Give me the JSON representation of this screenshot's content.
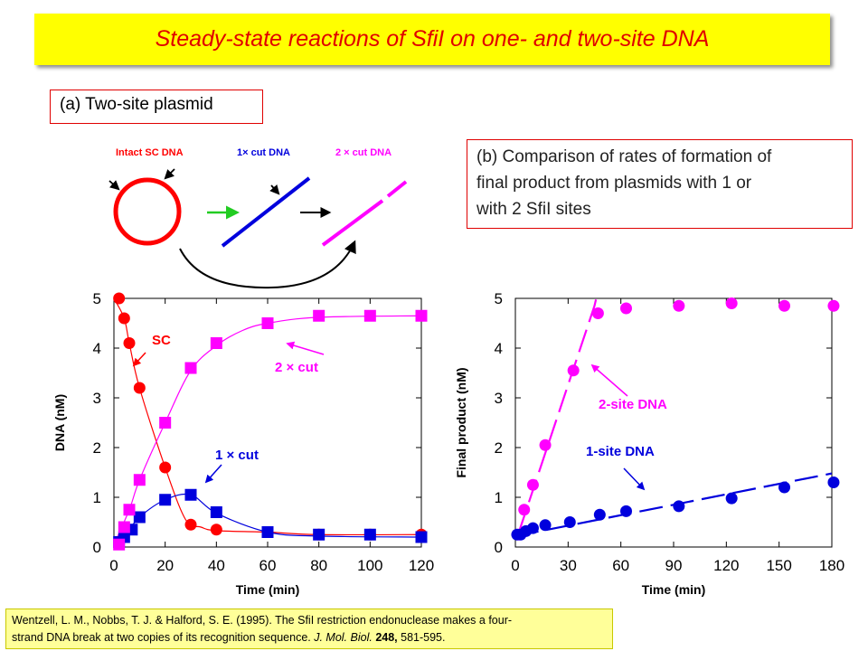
{
  "title": "Steady-state reactions of SfiI  on one- and two-site DNA",
  "panel_a_label": "(a) Two-site plasmid",
  "panel_b_lines": [
    "(b) Comparison of rates of formation of",
    "final product from plasmids with 1 or",
    "with 2 SfiI sites"
  ],
  "schematic": {
    "intact_label": "Intact SC DNA",
    "one_cut_label": "1× cut DNA",
    "two_cut_label": "2 × cut DNA"
  },
  "colors": {
    "red": "#ff0000",
    "blue": "#0000dd",
    "magenta": "#ff00ff",
    "green": "#22cc22",
    "title_text": "#e00000"
  },
  "reference": {
    "line1": "Wentzell, L. M., Nobbs, T. J. & Halford, S. E. (1995). The SfiI restriction endonuclease makes a four-",
    "line2_pre": "strand DNA break at two copies of its recognition sequence. ",
    "journal": "J. Mol. Biol.",
    "volume": "248,",
    "pages": " 581-595."
  },
  "chart_data": [
    {
      "type": "scatter",
      "xlabel": "Time (min)",
      "ylabel": "DNA (nM)",
      "xlim": [
        0,
        120
      ],
      "ylim": [
        0,
        5
      ],
      "xticks": [
        0,
        20,
        40,
        60,
        80,
        100,
        120
      ],
      "yticks": [
        0,
        1,
        2,
        3,
        4,
        5
      ],
      "series": [
        {
          "name": "SC",
          "label": "SC",
          "color": "#ff0000",
          "marker": "circle",
          "x": [
            2,
            4,
            6,
            10,
            20,
            30,
            40,
            60,
            80,
            100,
            120
          ],
          "y": [
            5.0,
            4.6,
            4.1,
            3.2,
            1.6,
            0.45,
            0.35,
            0.3,
            0.25,
            0.25,
            0.25
          ]
        },
        {
          "name": "1 × cut",
          "label": "1 × cut",
          "color": "#0000dd",
          "marker": "square",
          "x": [
            2,
            4,
            7,
            10,
            20,
            30,
            40,
            60,
            80,
            100,
            120
          ],
          "y": [
            0.1,
            0.2,
            0.35,
            0.6,
            0.95,
            1.05,
            0.7,
            0.3,
            0.25,
            0.25,
            0.2
          ]
        },
        {
          "name": "2 × cut",
          "label": "2 × cut",
          "color": "#ff00ff",
          "marker": "square",
          "x": [
            2,
            4,
            6,
            10,
            20,
            30,
            40,
            60,
            80,
            100,
            120
          ],
          "y": [
            0.05,
            0.4,
            0.75,
            1.35,
            2.5,
            3.6,
            4.1,
            4.5,
            4.65,
            4.65,
            4.65
          ]
        }
      ]
    },
    {
      "type": "scatter",
      "xlabel": "Time (min)",
      "ylabel": "Final product (nM)",
      "xlim": [
        0,
        180
      ],
      "ylim": [
        0,
        5
      ],
      "xticks": [
        0,
        30,
        60,
        90,
        120,
        150,
        180
      ],
      "yticks": [
        0,
        1,
        2,
        3,
        4,
        5
      ],
      "series": [
        {
          "name": "2-site DNA",
          "label": "2-site DNA",
          "color": "#ff00ff",
          "marker": "circle",
          "x": [
            2,
            5,
            10,
            17,
            33,
            47,
            63,
            93,
            123,
            153,
            181
          ],
          "y": [
            0.25,
            0.75,
            1.25,
            2.05,
            3.55,
            4.7,
            4.8,
            4.85,
            4.9,
            4.85,
            4.85
          ]
        },
        {
          "name": "1-site DNA",
          "label": "1-site DNA",
          "color": "#0000dd",
          "marker": "circle",
          "x": [
            1,
            3,
            6,
            10,
            17,
            31,
            48,
            63,
            93,
            123,
            153,
            181
          ],
          "y": [
            0.25,
            0.25,
            0.32,
            0.38,
            0.44,
            0.5,
            0.65,
            0.72,
            0.82,
            0.98,
            1.2,
            1.3
          ]
        }
      ]
    }
  ]
}
